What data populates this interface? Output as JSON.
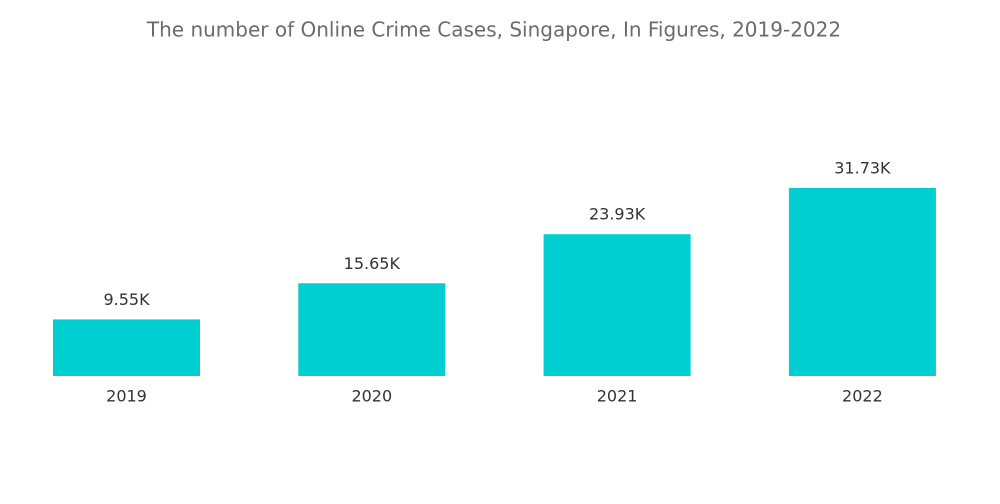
{
  "chart_data": {
    "type": "bar",
    "title": "The number of Online Crime Cases, Singapore, In Figures, 2019-2022",
    "categories": [
      "2019",
      "2020",
      "2021",
      "2022"
    ],
    "values": [
      9550,
      15650,
      23930,
      31730
    ],
    "value_labels": [
      "9.55K",
      "15.65K",
      "23.93K",
      "31.73K"
    ],
    "color": "#00ced1"
  }
}
